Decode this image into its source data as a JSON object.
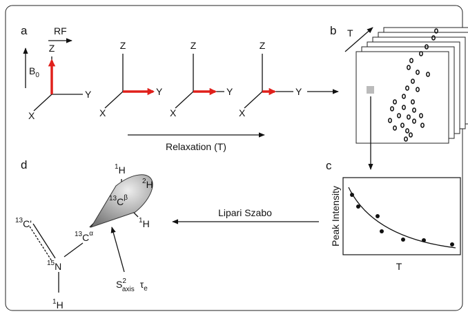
{
  "panel_a": {
    "label": "a",
    "rf": "RF",
    "b0": {
      "base": "B",
      "sub": "0"
    },
    "axes": [
      {
        "z": "Z",
        "y": "Y",
        "x": "X"
      },
      {
        "z": "Z",
        "y": "Y",
        "x": "X"
      },
      {
        "z": "Z",
        "y": "Y",
        "x": "X"
      },
      {
        "z": "Z",
        "y": "Y",
        "x": "X"
      }
    ],
    "relaxation": "Relaxation (T)"
  },
  "panel_b": {
    "label": "b",
    "axis": "T"
  },
  "panel_c": {
    "label": "c",
    "y_label": "Peak Intensity",
    "x_label": "T"
  },
  "panel_d": {
    "label": "d",
    "arrow_label": "Lipari Szabo",
    "atoms": {
      "h_top": {
        "sup": "1",
        "symbol": "H"
      },
      "h2": {
        "sup": "2",
        "symbol": "H"
      },
      "cb": {
        "sup": "13",
        "symbol": "C",
        "sup2": "β"
      },
      "h_right": {
        "sup": "1",
        "symbol": "H"
      },
      "ca": {
        "sup": "13",
        "symbol": "C",
        "sup2": "α"
      },
      "cp": {
        "sup": "13",
        "symbol": "C'"
      },
      "n": {
        "sup": "15",
        "symbol": "N"
      },
      "h_n": {
        "sup": "1",
        "symbol": "H"
      }
    },
    "order": {
      "base": "S",
      "sup": "2",
      "sub": "axis",
      "tau": "τ",
      "tau_sub": "e"
    }
  }
}
